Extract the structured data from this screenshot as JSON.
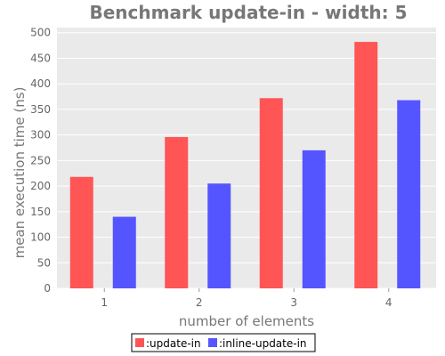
{
  "chart_data": {
    "type": "bar",
    "title": "Benchmark update-in - width: 5",
    "xlabel": "number of elements",
    "ylabel": "mean execution time (ns)",
    "categories": [
      "1",
      "2",
      "3",
      "4"
    ],
    "series": [
      {
        "name": ":update-in",
        "values": [
          218,
          296,
          372,
          482
        ],
        "color": "#ff5555"
      },
      {
        "name": ":inline-update-in",
        "values": [
          140,
          205,
          270,
          368
        ],
        "color": "#5555ff"
      }
    ],
    "ylim": [
      0,
      510
    ],
    "yticks": [
      0,
      50,
      100,
      150,
      200,
      250,
      300,
      350,
      400,
      450,
      500
    ],
    "grid": true,
    "legend_position": "bottom",
    "plot_background": "#eaeaea",
    "grid_color": "#ffffff"
  }
}
